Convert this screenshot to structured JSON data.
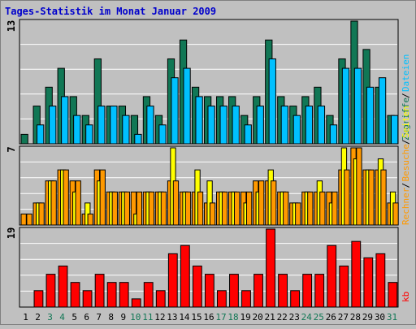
{
  "colors": {
    "background": "#c0c0c0",
    "panel": "#c0c0c0",
    "grid": "#ffffff",
    "title": "#0000cc",
    "hits": "#117755",
    "files": "#00c0ff",
    "pages": "#ffff00",
    "visits": "#ff9900",
    "kb": "#ff0000",
    "weekend": "#117755",
    "weekday": "#000000"
  },
  "chart_data": {
    "type": "bar",
    "title": "Tages-Statistik im Monat Januar 2009",
    "days": [
      "1",
      "2",
      "3",
      "4",
      "5",
      "6",
      "7",
      "8",
      "9",
      "10",
      "11",
      "12",
      "13",
      "14",
      "15",
      "16",
      "17",
      "18",
      "19",
      "20",
      "21",
      "22",
      "23",
      "24",
      "25",
      "26",
      "27",
      "28",
      "29",
      "30",
      "31"
    ],
    "weekend_days": [
      "3",
      "4",
      "10",
      "11",
      "17",
      "18",
      "24",
      "25",
      "31"
    ],
    "panels": [
      {
        "id": "top",
        "ylabel_max": "13",
        "ylim": [
          0,
          13
        ],
        "legend": [
          {
            "text": "Zugriffe",
            "color_key": "hits"
          },
          {
            "text": "Dateien",
            "color_key": "files"
          }
        ],
        "separator": "/",
        "series": [
          {
            "name": "Zugriffe",
            "color_key": "hits",
            "values": [
              1,
              4,
              6,
              8,
              5,
              3,
              9,
              4,
              4,
              3,
              5,
              3,
              9,
              11,
              6,
              5,
              5,
              5,
              3,
              5,
              11,
              5,
              4,
              5,
              6,
              3,
              9,
              13,
              10,
              6,
              3
            ]
          },
          {
            "name": "Dateien",
            "color_key": "files",
            "values": [
              0,
              2,
              4,
              5,
              3,
              2,
              4,
              4,
              3,
              1,
              4,
              2,
              7,
              8,
              5,
              4,
              4,
              4,
              2,
              4,
              9,
              4,
              3,
              4,
              4,
              2,
              8,
              8,
              6,
              7,
              3
            ]
          }
        ]
      },
      {
        "id": "middle",
        "ylabel_max": "7",
        "ylim": [
          0,
          7
        ],
        "legend": [
          {
            "text": "Rechner",
            "color_key": "visits"
          },
          {
            "text": "Besuche",
            "color_key": "visits"
          },
          {
            "text": "Seiten",
            "color_key": "pages"
          }
        ],
        "separator": "/",
        "series": [
          {
            "name": "Besuche",
            "color_key": "visits",
            "values": [
              1,
              2,
              4,
              5,
              4,
              1,
              5,
              3,
              3,
              3,
              3,
              3,
              4,
              3,
              3,
              2,
              3,
              3,
              3,
              4,
              4,
              3,
              2,
              3,
              3,
              3,
              5,
              7,
              5,
              5,
              2
            ]
          },
          {
            "name": "Seiten",
            "color_key": "pages",
            "values": [
              0,
              2,
              4,
              5,
              3,
              2,
              4,
              3,
              3,
              1,
              3,
              3,
              7,
              3,
              5,
              4,
              3,
              3,
              2,
              3,
              5,
              3,
              2,
              3,
              4,
              2,
              7,
              6,
              5,
              6,
              3
            ]
          },
          {
            "name": "Rechner",
            "color_key": "visits",
            "values": [
              1,
              2,
              4,
              5,
              4,
              1,
              5,
              3,
              3,
              3,
              3,
              3,
              4,
              3,
              3,
              2,
              3,
              3,
              3,
              4,
              4,
              3,
              2,
              3,
              3,
              3,
              5,
              7,
              5,
              5,
              2
            ]
          }
        ]
      },
      {
        "id": "bottom",
        "ylabel_max": "19",
        "ylim": [
          0,
          19
        ],
        "legend": [
          {
            "text": "kb",
            "color_key": "kb"
          }
        ],
        "separator": "",
        "series": [
          {
            "name": "kb",
            "color_key": "kb",
            "values": [
              0,
              4,
              8,
              10,
              6,
              4,
              8,
              6,
              6,
              2,
              6,
              4,
              13,
              15,
              10,
              8,
              4,
              8,
              4,
              8,
              19,
              8,
              4,
              8,
              8,
              15,
              10,
              16,
              12,
              13,
              6
            ]
          }
        ]
      }
    ]
  }
}
